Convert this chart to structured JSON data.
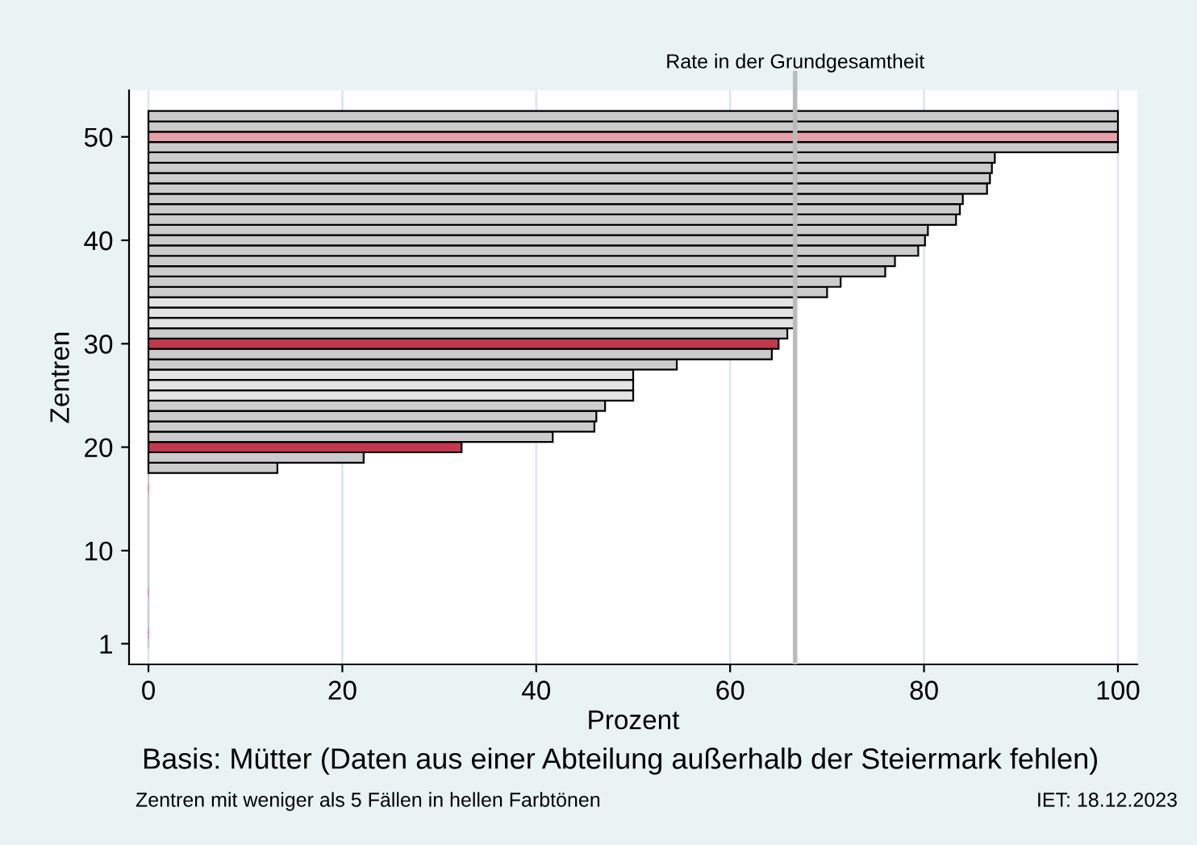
{
  "chart_data": {
    "type": "bar",
    "orientation": "horizontal",
    "xlabel": "Prozent",
    "ylabel": "Zentren",
    "x": [
      1,
      2,
      3,
      4,
      5,
      6,
      7,
      8,
      9,
      10,
      11,
      12,
      13,
      14,
      15,
      16,
      17,
      18,
      19,
      20,
      21,
      22,
      23,
      24,
      25,
      26,
      27,
      28,
      29,
      30,
      31,
      32,
      33,
      34,
      35,
      36,
      37,
      38,
      39,
      40,
      41,
      42,
      43,
      44,
      45,
      46,
      47,
      48,
      49,
      50,
      51,
      52
    ],
    "values": [
      0,
      0,
      0,
      0,
      0,
      0,
      0,
      0,
      0,
      0,
      0,
      0,
      0,
      0,
      0,
      0,
      0,
      13.3,
      22.2,
      32.3,
      41.7,
      46,
      46.2,
      47.1,
      50,
      50,
      50,
      54.5,
      64.3,
      65,
      65.9,
      66.7,
      66.7,
      66.7,
      70,
      71.4,
      76,
      77,
      79.4,
      80.1,
      80.4,
      83.3,
      83.7,
      84,
      86.5,
      86.8,
      87,
      87.3,
      100,
      100,
      100,
      100
    ],
    "colors": [
      "#cccccc",
      "#e8a0aa",
      "#cccccc",
      "#cccccc",
      "#cccccc",
      "#e8a0aa",
      "#cccccc",
      "#cccccc",
      "#cccccc",
      "#cccccc",
      "#cccccc",
      "#cccccc",
      "#cccccc",
      "#cccccc",
      "#cccccc",
      "#e8a0aa",
      "#cccccc",
      "#cccccc",
      "#cccccc",
      "#c0394f",
      "#cccccc",
      "#cccccc",
      "#cccccc",
      "#cccccc",
      "#e4e4e4",
      "#e4e4e4",
      "#e4e4e4",
      "#cccccc",
      "#cccccc",
      "#c0394f",
      "#cccccc",
      "#e4e4e4",
      "#e4e4e4",
      "#e4e4e4",
      "#cccccc",
      "#cccccc",
      "#cccccc",
      "#cccccc",
      "#cccccc",
      "#cccccc",
      "#cccccc",
      "#cccccc",
      "#cccccc",
      "#cccccc",
      "#cccccc",
      "#cccccc",
      "#cccccc",
      "#cccccc",
      "#cccccc",
      "#e8a0aa",
      "#cccccc",
      "#cccccc"
    ],
    "xlim": [
      -2,
      102
    ],
    "xticks": [
      0,
      20,
      40,
      60,
      80,
      100
    ],
    "ylim": [
      -1,
      54.5
    ],
    "yticks": [
      1,
      10,
      20,
      30,
      40,
      50
    ],
    "grid": "x",
    "ref_lines": [
      {
        "axis": "x",
        "value": 66.7,
        "label": "Rate in der Grundgesamtheit",
        "color": "#bbbbbb"
      }
    ],
    "annotations": [
      "Basis: Mütter (Daten aus einer Abteilung außerhalb der Steiermark fehlen)",
      "Zentren mit weniger als 5 Fällen in hellen Farbtönen",
      "IET: 18.12.2023"
    ]
  }
}
